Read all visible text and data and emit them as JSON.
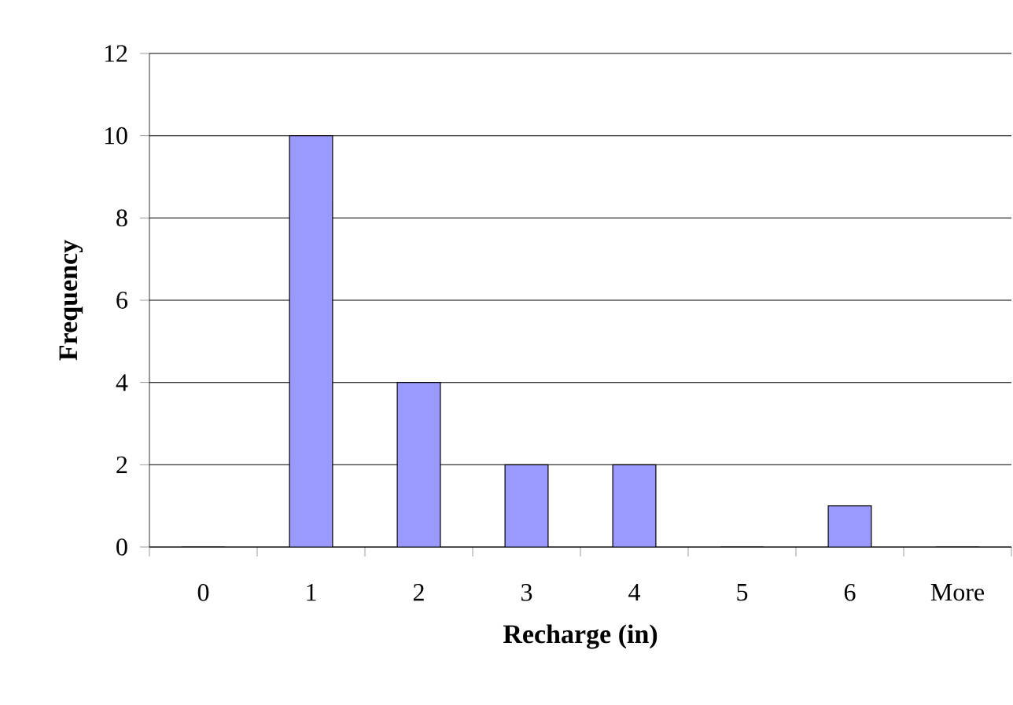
{
  "chart_data": {
    "type": "bar",
    "xlabel": "Recharge (in)",
    "ylabel": "Frequency",
    "categories": [
      "0",
      "1",
      "2",
      "3",
      "4",
      "5",
      "6",
      "More"
    ],
    "values": [
      0,
      10,
      4,
      2,
      2,
      0,
      1,
      0
    ],
    "color": "#9999ff",
    "ylim": [
      0,
      12
    ],
    "yticks": [
      0,
      2,
      4,
      6,
      8,
      10,
      12
    ],
    "grid": "y"
  }
}
